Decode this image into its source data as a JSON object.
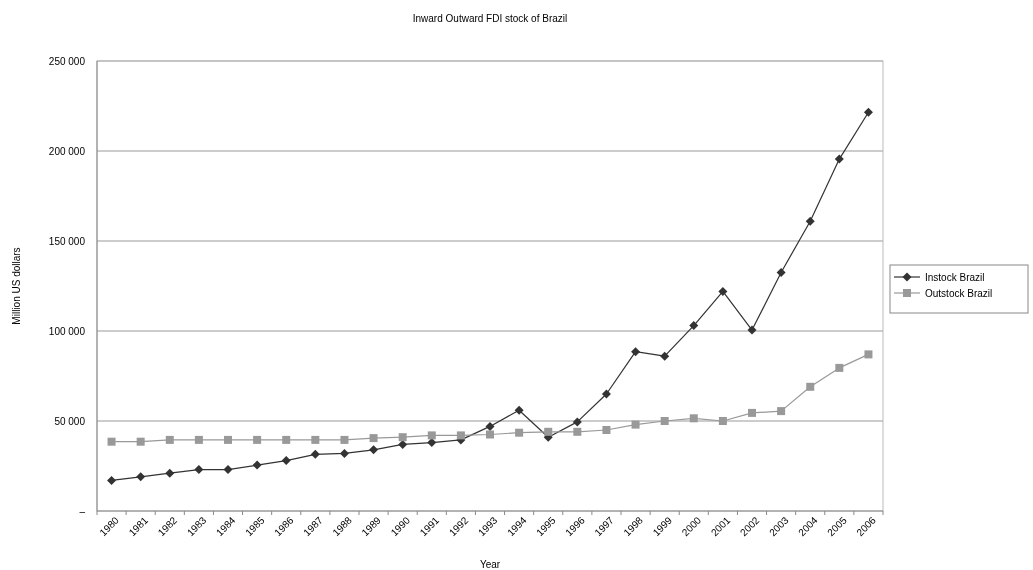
{
  "chart_data": {
    "type": "line",
    "title": "Inward Outward FDI stock of Brazil",
    "xlabel": "Year",
    "ylabel": "Million US dollars",
    "categories": [
      "1980",
      "1981",
      "1982",
      "1983",
      "1984",
      "1985",
      "1986",
      "1987",
      "1988",
      "1989",
      "1990",
      "1991",
      "1992",
      "1993",
      "1994",
      "1995",
      "1996",
      "1997",
      "1998",
      "1999",
      "2000",
      "2001",
      "2002",
      "2003",
      "2004",
      "2005",
      "2006"
    ],
    "series": [
      {
        "name": "Instock Brazil",
        "color": "#333333",
        "marker": "diamond",
        "values": [
          17000,
          19000,
          21000,
          23000,
          23000,
          25500,
          28000,
          31500,
          32000,
          34000,
          37000,
          38000,
          39500,
          47000,
          56000,
          41000,
          49500,
          65000,
          88500,
          86000,
          103000,
          122000,
          100500,
          132500,
          161000,
          195500,
          221500
        ]
      },
      {
        "name": "Outstock Brazil",
        "color": "#999999",
        "marker": "square",
        "values": [
          38500,
          38500,
          39500,
          39500,
          39500,
          39500,
          39500,
          39500,
          39500,
          40500,
          41000,
          42000,
          42000,
          42500,
          43500,
          44000,
          44000,
          45000,
          48000,
          50000,
          51500,
          50000,
          54500,
          55500,
          69000,
          79500,
          87000
        ]
      }
    ],
    "ylim": [
      0,
      250000
    ],
    "yticks": [
      {
        "value": 0,
        "label": "–"
      },
      {
        "value": 50000,
        "label": "50 000"
      },
      {
        "value": 100000,
        "label": "100 000"
      },
      {
        "value": 150000,
        "label": "150 000"
      },
      {
        "value": 200000,
        "label": "200 000"
      },
      {
        "value": 250000,
        "label": "250 000"
      }
    ],
    "grid": "y",
    "legend": "right"
  }
}
